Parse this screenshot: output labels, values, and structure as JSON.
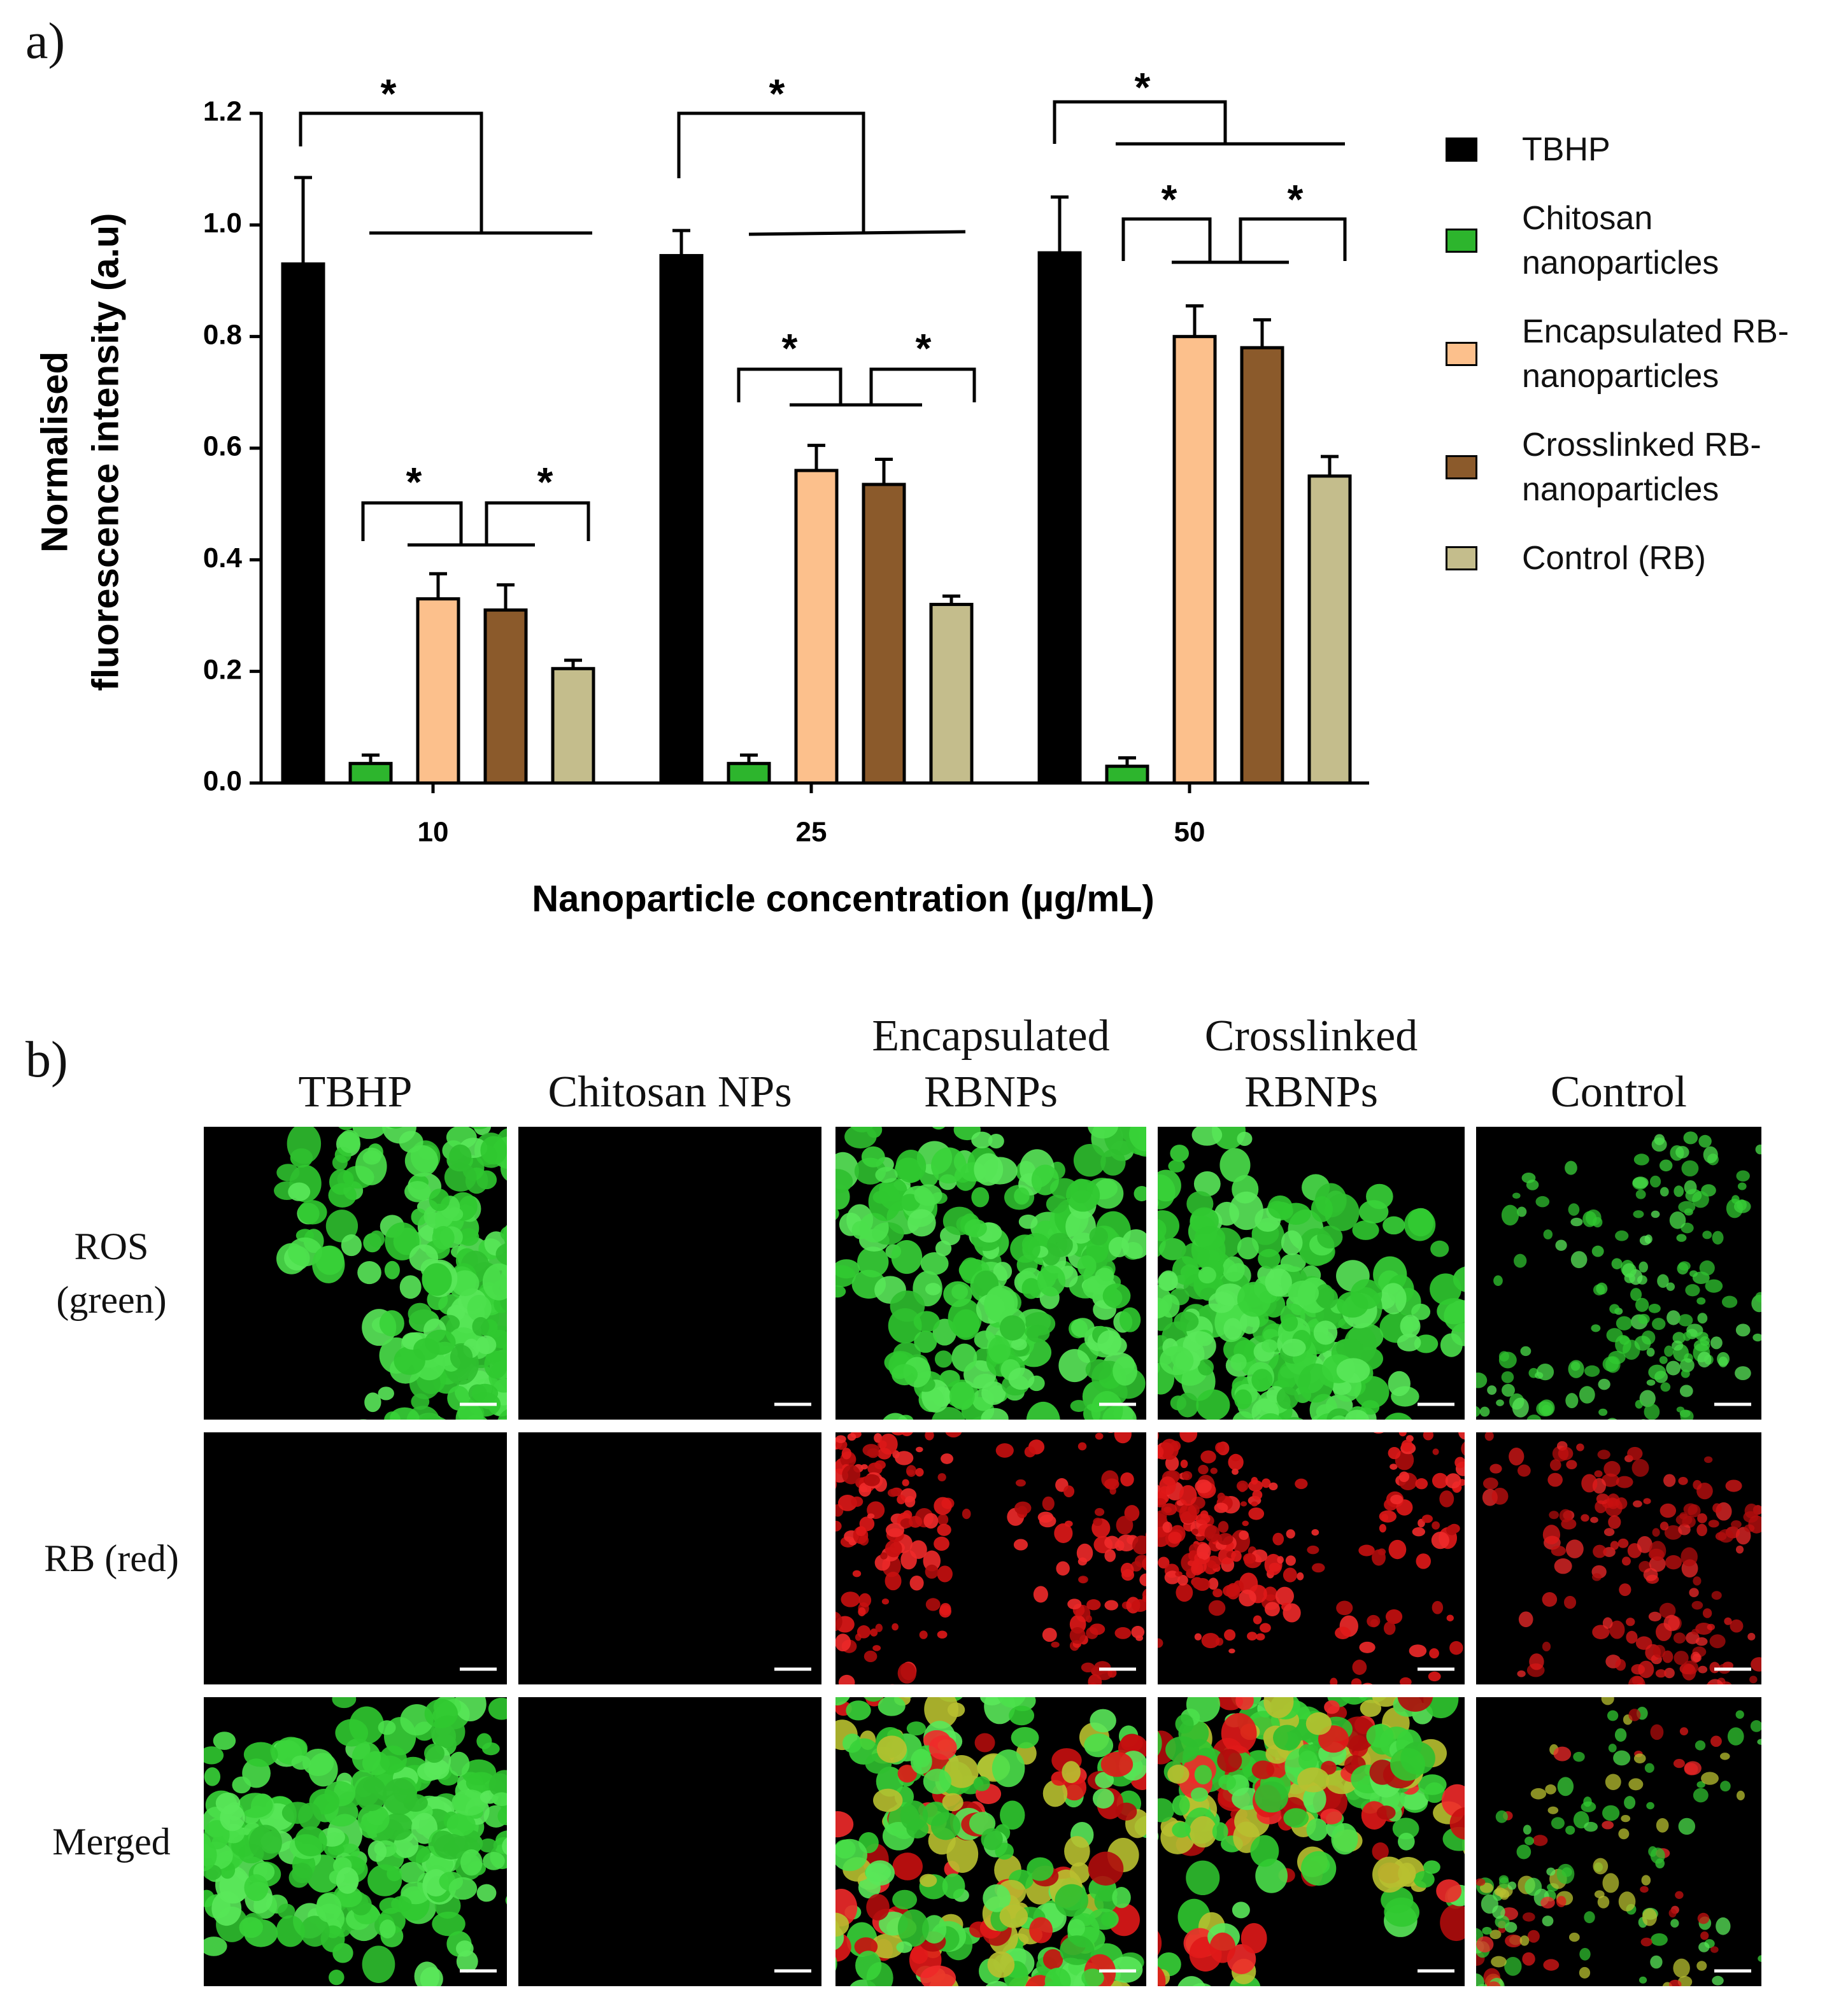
{
  "panel_labels": [
    "a)",
    "b)"
  ],
  "chart_data": {
    "type": "bar",
    "ylabel": [
      "Normalised",
      "fluorescence intensity (a.u)"
    ],
    "xlabel": "Nanoparticle concentration (µg/mL)",
    "categories": [
      "10",
      "25",
      "50"
    ],
    "series": [
      {
        "name": "TBHP",
        "color": "#000000",
        "values": [
          0.93,
          0.945,
          0.95
        ],
        "errors": [
          0.155,
          0.045,
          0.1
        ]
      },
      {
        "name": "Chitosan nanoparticles",
        "color": "#2db52d",
        "values": [
          0.035,
          0.035,
          0.03
        ],
        "errors": [
          0.015,
          0.015,
          0.015
        ]
      },
      {
        "name": "Encapsulated RB-nanoparticles",
        "color": "#fcc08c",
        "values": [
          0.33,
          0.56,
          0.8
        ],
        "errors": [
          0.045,
          0.045,
          0.055
        ]
      },
      {
        "name": "Crosslinked RB-nanoparticles",
        "color": "#8b5a2b",
        "values": [
          0.31,
          0.535,
          0.78
        ],
        "errors": [
          0.045,
          0.045,
          0.05
        ]
      },
      {
        "name": "Control (RB)",
        "color": "#c4bd8c",
        "values": [
          0.205,
          0.32,
          0.55
        ],
        "errors": [
          0.015,
          0.015,
          0.035
        ]
      }
    ],
    "ylim": [
      0,
      1.2
    ],
    "yticks": [
      {
        "value": 0,
        "label": "0.0"
      },
      0.2,
      0.4,
      0.6,
      0.8,
      {
        "value": 1,
        "label": "1.0"
      },
      1.2
    ],
    "annotations": [
      "*",
      "*",
      "*",
      "*",
      "*",
      "*",
      "*",
      "*",
      "*"
    ]
  },
  "image_grid": {
    "columns": [
      "TBHP",
      "Chitosan NPs",
      "Encapsulated RBNPs",
      "Crosslinked RBNPs",
      "Control"
    ],
    "rows": [
      "ROS (green)",
      "RB (red)",
      "Merged"
    ]
  }
}
